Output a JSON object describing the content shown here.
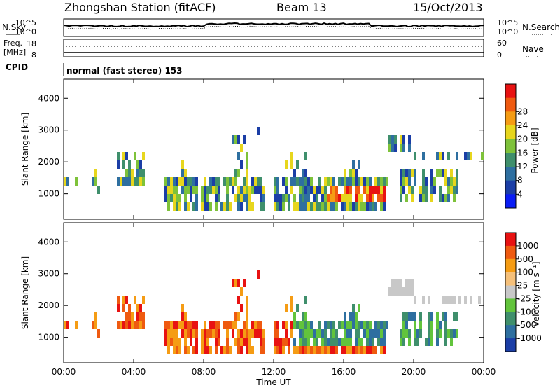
{
  "header": {
    "station_title": "Zhongshan Station (fitACF)",
    "beam": "Beam 13",
    "date": "15/Oct/2013"
  },
  "strips": {
    "nsky": {
      "label": "N.Sky",
      "ticks": [
        "10^5",
        "10^0"
      ]
    },
    "nsearch": {
      "label": "N.Search",
      "ticks": [
        "10^5",
        "10^0"
      ]
    },
    "freq": {
      "label1": "Freq.",
      "label2": "[MHz]",
      "ticks": [
        "18",
        "8"
      ]
    },
    "nave": {
      "label": "Nave",
      "ticks": [
        "60",
        "0"
      ]
    },
    "cpid": {
      "label": "CPID",
      "text": "normal (fast stereo) 153"
    }
  },
  "colors": {
    "power": [
      "#0a1df5",
      "#1b3ea6",
      "#2e6fa0",
      "#3f8f6c",
      "#7ec23a",
      "#e7d61d",
      "#f59c14",
      "#ef5a10",
      "#e81212"
    ],
    "velocity": [
      "#e81212",
      "#ef5a10",
      "#f59c14",
      "#f5c07a",
      "#c8c8c8",
      "#62c43c",
      "#3f8f6c",
      "#2e6fa0",
      "#1b3ea6"
    ]
  },
  "chart_data": [
    {
      "type": "heatmap",
      "name": "power",
      "ylabel": "Slant Range [km]",
      "xlabel": "",
      "xticks": [
        "00:00",
        "04:00",
        "08:00",
        "12:00",
        "16:00",
        "20:00",
        "00:00"
      ],
      "yticks": [
        "1000",
        "2000",
        "3000",
        "4000"
      ],
      "ylim": [
        200,
        4600
      ],
      "xlim_hours": [
        0,
        24
      ],
      "colorbar": {
        "label": "Power [dB]",
        "ticks": [
          "4",
          "8",
          "12",
          "16",
          "20",
          "24",
          "28"
        ]
      }
    },
    {
      "type": "heatmap",
      "name": "velocity",
      "ylabel": "Slant Range [km]",
      "xlabel": "Time UT",
      "xticks": [
        "00:00",
        "04:00",
        "08:00",
        "12:00",
        "16:00",
        "20:00",
        "00:00"
      ],
      "yticks": [
        "1000",
        "2000",
        "3000",
        "4000"
      ],
      "ylim": [
        200,
        4600
      ],
      "xlim_hours": [
        0,
        24
      ],
      "colorbar": {
        "label": "Velocity [m s⁻¹]",
        "ticks": [
          "1000",
          "500",
          "100",
          "25",
          "-25",
          "-100",
          "-500",
          "-1000"
        ]
      }
    }
  ]
}
